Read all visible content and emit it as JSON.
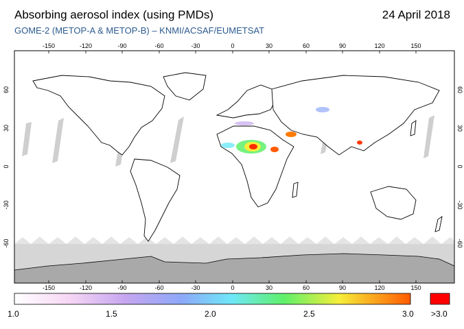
{
  "header": {
    "title": "Absorbing aerosol index (using PMDs)",
    "date": "24 April 2018",
    "subtitle": "GOME-2 (METOP-A & METOP-B)  –  KNMI/ACSAF/EUMETSAT"
  },
  "map": {
    "lon_ticks": [
      "-150",
      "-120",
      "-90",
      "-60",
      "-30",
      "0",
      "30",
      "60",
      "90",
      "120",
      "150"
    ],
    "lat_ticks_left": [
      "60",
      "30",
      "0",
      "-30",
      "-60"
    ],
    "lat_ticks_right": [
      "60",
      "30",
      "0",
      "-30",
      "-60"
    ]
  },
  "colorbar": {
    "labels": [
      "1.0",
      "1.5",
      "2.0",
      "2.5",
      "3.0"
    ],
    "over_label": ">3.0",
    "over_color": "#ff0000"
  }
}
